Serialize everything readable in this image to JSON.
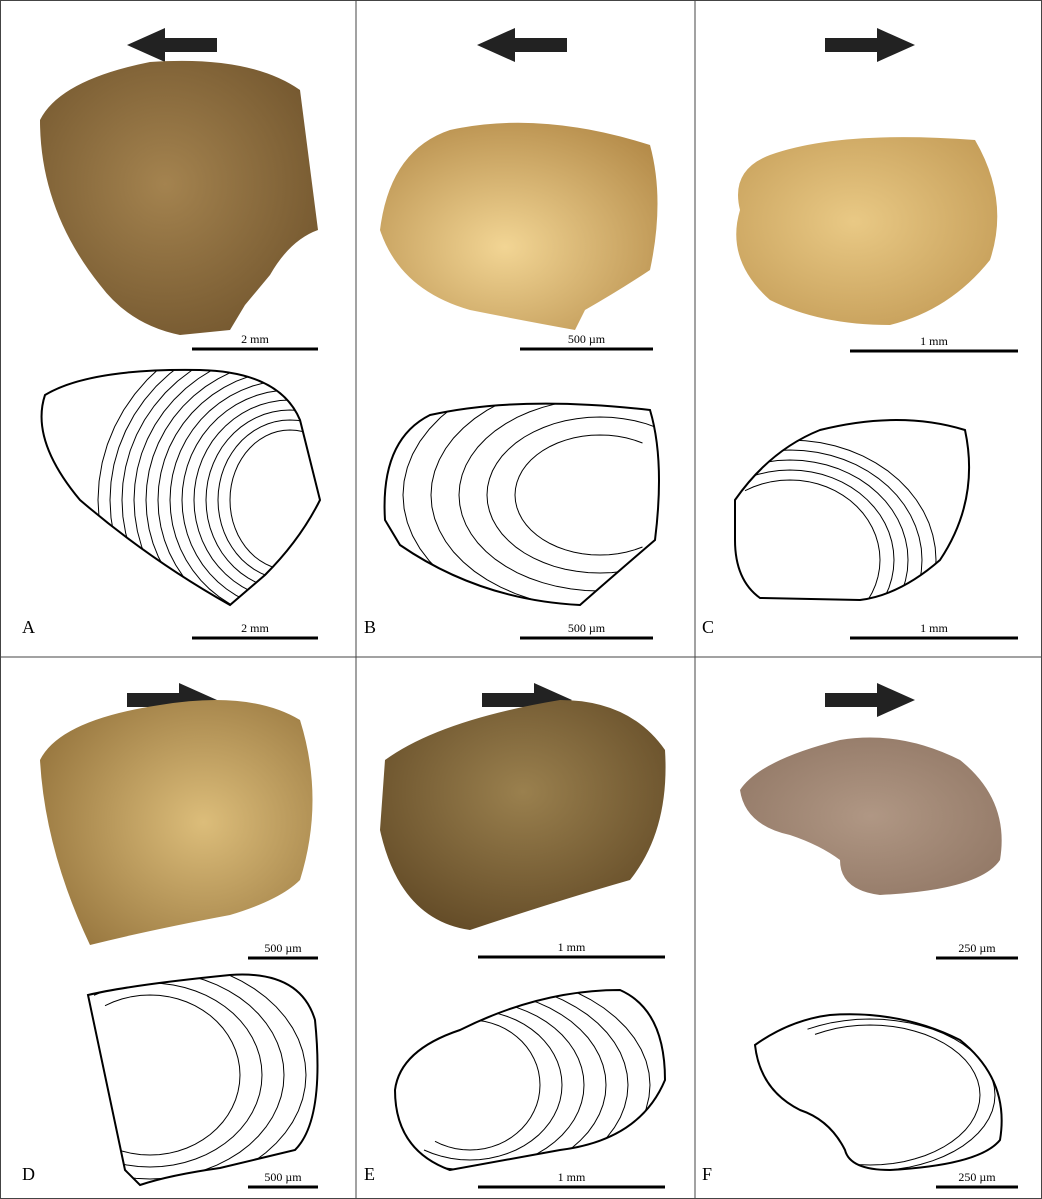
{
  "panels": [
    {
      "label": "A",
      "photo_scale": "2 mm",
      "drawing_scale": "2 mm"
    },
    {
      "label": "B",
      "photo_scale": "500 µm",
      "drawing_scale": "500 µm"
    },
    {
      "label": "C",
      "photo_scale": "1 mm",
      "drawing_scale": "1 mm"
    },
    {
      "label": "D",
      "photo_scale": "500 µm",
      "drawing_scale": "500 µm"
    },
    {
      "label": "E",
      "photo_scale": "1 mm",
      "drawing_scale": "1 mm"
    },
    {
      "label": "F",
      "photo_scale": "250 µm",
      "drawing_scale": "250 µm"
    }
  ]
}
